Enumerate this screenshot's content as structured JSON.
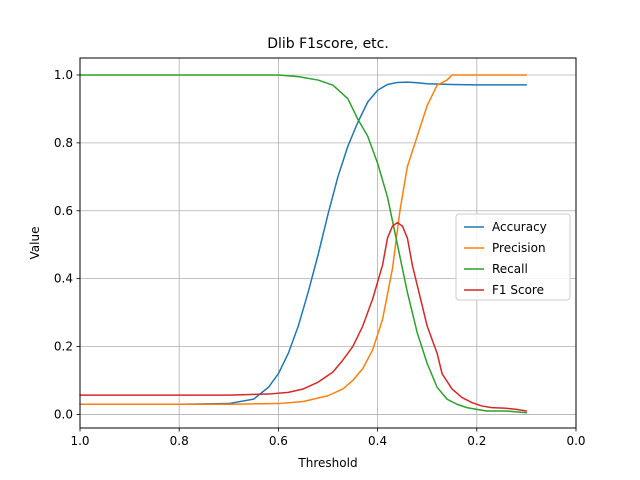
{
  "chart_data": {
    "type": "line",
    "title": "Dlib F1score, etc.",
    "xlabel": "Threshold",
    "ylabel": "Value",
    "xlim": [
      1.0,
      0.0
    ],
    "ylim": [
      -0.04,
      1.05
    ],
    "x_ticks": [
      1.0,
      0.8,
      0.6,
      0.4,
      0.2,
      0.0
    ],
    "x_tick_labels": [
      "1.0",
      "0.8",
      "0.6",
      "0.4",
      "0.2",
      "0.0"
    ],
    "y_ticks": [
      0.0,
      0.2,
      0.4,
      0.6,
      0.8,
      1.0
    ],
    "y_tick_labels": [
      "0.0",
      "0.2",
      "0.4",
      "0.6",
      "0.8",
      "1.0"
    ],
    "grid": true,
    "legend_position": "center-right",
    "series": [
      {
        "name": "Accuracy",
        "color": "#1f77b4",
        "points": [
          [
            1.0,
            0.03
          ],
          [
            0.9,
            0.03
          ],
          [
            0.8,
            0.03
          ],
          [
            0.7,
            0.032
          ],
          [
            0.65,
            0.045
          ],
          [
            0.62,
            0.08
          ],
          [
            0.6,
            0.12
          ],
          [
            0.58,
            0.18
          ],
          [
            0.56,
            0.26
          ],
          [
            0.54,
            0.36
          ],
          [
            0.52,
            0.47
          ],
          [
            0.5,
            0.59
          ],
          [
            0.48,
            0.7
          ],
          [
            0.46,
            0.79
          ],
          [
            0.44,
            0.86
          ],
          [
            0.42,
            0.92
          ],
          [
            0.4,
            0.955
          ],
          [
            0.38,
            0.972
          ],
          [
            0.36,
            0.978
          ],
          [
            0.34,
            0.979
          ],
          [
            0.32,
            0.977
          ],
          [
            0.3,
            0.974
          ],
          [
            0.25,
            0.972
          ],
          [
            0.2,
            0.971
          ],
          [
            0.1,
            0.971
          ]
        ]
      },
      {
        "name": "Precision",
        "color": "#ff7f0e",
        "points": [
          [
            1.0,
            0.03
          ],
          [
            0.9,
            0.03
          ],
          [
            0.8,
            0.03
          ],
          [
            0.7,
            0.03
          ],
          [
            0.6,
            0.032
          ],
          [
            0.55,
            0.038
          ],
          [
            0.5,
            0.055
          ],
          [
            0.47,
            0.075
          ],
          [
            0.45,
            0.1
          ],
          [
            0.43,
            0.135
          ],
          [
            0.41,
            0.19
          ],
          [
            0.39,
            0.28
          ],
          [
            0.37,
            0.43
          ],
          [
            0.355,
            0.6
          ],
          [
            0.34,
            0.73
          ],
          [
            0.32,
            0.82
          ],
          [
            0.3,
            0.91
          ],
          [
            0.28,
            0.97
          ],
          [
            0.26,
            0.985
          ],
          [
            0.25,
            1.0
          ],
          [
            0.2,
            1.0
          ],
          [
            0.1,
            1.0
          ]
        ]
      },
      {
        "name": "Recall",
        "color": "#2ca02c",
        "points": [
          [
            1.0,
            1.0
          ],
          [
            0.9,
            1.0
          ],
          [
            0.8,
            1.0
          ],
          [
            0.7,
            1.0
          ],
          [
            0.6,
            1.0
          ],
          [
            0.56,
            0.995
          ],
          [
            0.52,
            0.985
          ],
          [
            0.49,
            0.97
          ],
          [
            0.46,
            0.93
          ],
          [
            0.44,
            0.87
          ],
          [
            0.42,
            0.82
          ],
          [
            0.4,
            0.74
          ],
          [
            0.38,
            0.64
          ],
          [
            0.36,
            0.5
          ],
          [
            0.34,
            0.36
          ],
          [
            0.32,
            0.24
          ],
          [
            0.3,
            0.15
          ],
          [
            0.28,
            0.08
          ],
          [
            0.26,
            0.045
          ],
          [
            0.24,
            0.03
          ],
          [
            0.22,
            0.02
          ],
          [
            0.2,
            0.015
          ],
          [
            0.18,
            0.01
          ],
          [
            0.14,
            0.01
          ],
          [
            0.1,
            0.005
          ]
        ]
      },
      {
        "name": "F1 Score",
        "color": "#d62728",
        "points": [
          [
            1.0,
            0.057
          ],
          [
            0.9,
            0.057
          ],
          [
            0.8,
            0.057
          ],
          [
            0.7,
            0.057
          ],
          [
            0.62,
            0.06
          ],
          [
            0.58,
            0.065
          ],
          [
            0.55,
            0.075
          ],
          [
            0.52,
            0.095
          ],
          [
            0.49,
            0.125
          ],
          [
            0.47,
            0.16
          ],
          [
            0.45,
            0.2
          ],
          [
            0.43,
            0.26
          ],
          [
            0.41,
            0.34
          ],
          [
            0.39,
            0.44
          ],
          [
            0.38,
            0.52
          ],
          [
            0.37,
            0.555
          ],
          [
            0.36,
            0.565
          ],
          [
            0.35,
            0.555
          ],
          [
            0.34,
            0.52
          ],
          [
            0.33,
            0.44
          ],
          [
            0.31,
            0.32
          ],
          [
            0.3,
            0.26
          ],
          [
            0.28,
            0.18
          ],
          [
            0.27,
            0.12
          ],
          [
            0.25,
            0.075
          ],
          [
            0.23,
            0.05
          ],
          [
            0.21,
            0.035
          ],
          [
            0.19,
            0.025
          ],
          [
            0.17,
            0.02
          ],
          [
            0.14,
            0.018
          ],
          [
            0.12,
            0.015
          ],
          [
            0.1,
            0.01
          ]
        ]
      }
    ]
  }
}
